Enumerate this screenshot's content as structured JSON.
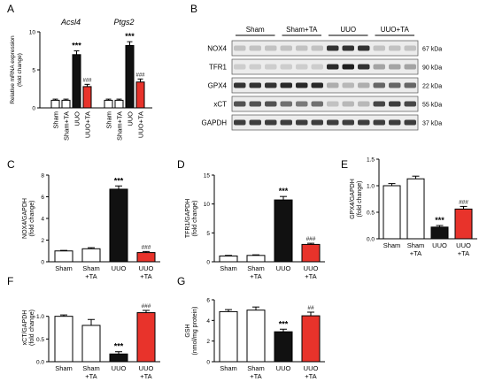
{
  "colors": {
    "sham": "#ffffff",
    "uuo": "#111111",
    "uuo_ta": "#e8332b",
    "axis": "#000000"
  },
  "blot": {
    "panel_letter": "B",
    "groups": [
      "Sham",
      "Sham+TA",
      "UUO",
      "UUO+TA"
    ],
    "rows": [
      {
        "name": "NOX4",
        "size": "67 kDa",
        "levels": [
          0.15,
          0.15,
          0.15,
          0.15,
          0.15,
          0.15,
          0.85,
          0.85,
          0.85,
          0.15,
          0.15,
          0.15
        ]
      },
      {
        "name": "TFR1",
        "size": "90 kDa",
        "levels": [
          0.1,
          0.1,
          0.1,
          0.1,
          0.1,
          0.1,
          0.9,
          0.95,
          0.85,
          0.3,
          0.3,
          0.3
        ]
      },
      {
        "name": "GPX4",
        "size": "22 kDa",
        "levels": [
          0.85,
          0.85,
          0.85,
          0.9,
          0.9,
          0.9,
          0.25,
          0.2,
          0.25,
          0.6,
          0.6,
          0.6
        ]
      },
      {
        "name": "xCT",
        "size": "55 kDa",
        "levels": [
          0.7,
          0.7,
          0.7,
          0.55,
          0.5,
          0.55,
          0.15,
          0.2,
          0.2,
          0.75,
          0.8,
          0.75
        ]
      },
      {
        "name": "GAPDH",
        "size": "37 kDa",
        "levels": [
          0.8,
          0.8,
          0.8,
          0.8,
          0.8,
          0.8,
          0.8,
          0.8,
          0.8,
          0.8,
          0.8,
          0.8
        ]
      }
    ]
  },
  "chart_data": [
    {
      "panel": "A",
      "type": "bar",
      "ylabel": "Relative mRNA expression (fold change)",
      "ylim": [
        0,
        10
      ],
      "yticks": [
        0,
        5,
        10
      ],
      "categories": [
        "Sham",
        "Sham+TA",
        "UUO",
        "UUO+TA"
      ],
      "groups": [
        {
          "name": "Acsl4",
          "values": [
            1.0,
            1.0,
            7.0,
            2.8
          ],
          "errors": [
            0.15,
            0.15,
            0.5,
            0.3
          ],
          "marks": [
            "",
            "",
            "***",
            "###"
          ]
        },
        {
          "name": "Ptgs2",
          "values": [
            1.0,
            1.0,
            8.2,
            3.4
          ],
          "errors": [
            0.15,
            0.15,
            0.5,
            0.4
          ],
          "marks": [
            "",
            "",
            "***",
            "###"
          ]
        }
      ]
    },
    {
      "panel": "C",
      "type": "bar",
      "ylabel": "NOX4/GAPDH (fold change)",
      "ylim": [
        0,
        8
      ],
      "yticks": [
        0,
        2,
        4,
        6,
        8
      ],
      "categories": [
        "Sham",
        "Sham +TA",
        "UUO",
        "UUO +TA"
      ],
      "values": [
        1.0,
        1.2,
        6.7,
        0.85
      ],
      "errors": [
        0.05,
        0.1,
        0.3,
        0.1
      ],
      "marks": [
        "",
        "",
        "***",
        "###"
      ]
    },
    {
      "panel": "D",
      "type": "bar",
      "ylabel": "TFR1/GAPDH (fold change)",
      "ylim": [
        0,
        15
      ],
      "yticks": [
        0,
        5,
        10,
        15
      ],
      "categories": [
        "Sham",
        "Sham +TA",
        "UUO",
        "UUO +TA"
      ],
      "values": [
        1.0,
        1.1,
        10.7,
        3.0
      ],
      "errors": [
        0.1,
        0.1,
        0.6,
        0.2
      ],
      "marks": [
        "",
        "",
        "***",
        "###"
      ]
    },
    {
      "panel": "E",
      "type": "bar",
      "ylabel": "GPX4/GAPDH (fold change)",
      "ylim": [
        0,
        1.5
      ],
      "yticks": [
        0,
        0.5,
        1.0,
        1.5
      ],
      "categories": [
        "Sham",
        "Sham +TA",
        "UUO",
        "UUO +TA"
      ],
      "values": [
        1.0,
        1.13,
        0.22,
        0.56
      ],
      "errors": [
        0.04,
        0.05,
        0.03,
        0.05
      ],
      "marks": [
        "",
        "",
        "***",
        "###"
      ]
    },
    {
      "panel": "F",
      "type": "bar",
      "ylabel": "xCT/GAPDH (fold change)",
      "ylim": [
        0,
        1.5
      ],
      "yticks": [
        0,
        0.5,
        1.0
      ],
      "categories": [
        "Sham",
        "Sham +TA",
        "UUO",
        "UUO +TA"
      ],
      "values": [
        1.0,
        0.8,
        0.17,
        1.08
      ],
      "errors": [
        0.03,
        0.13,
        0.05,
        0.05
      ],
      "marks": [
        "",
        "",
        "***",
        "###"
      ]
    },
    {
      "panel": "G",
      "type": "bar",
      "ylabel": "GSH (nmol/mg protein)",
      "ylim": [
        0,
        6
      ],
      "yticks": [
        0,
        2,
        4,
        6
      ],
      "categories": [
        "Sham",
        "Sham +TA",
        "UUO",
        "UUO +TA"
      ],
      "values": [
        4.85,
        5.0,
        2.9,
        4.45
      ],
      "errors": [
        0.2,
        0.3,
        0.25,
        0.35
      ],
      "marks": [
        "",
        "",
        "***",
        "##"
      ]
    }
  ]
}
